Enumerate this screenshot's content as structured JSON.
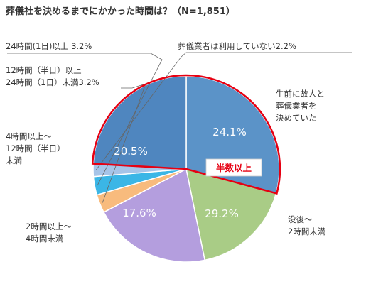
{
  "chart_data": {
    "type": "pie",
    "title": "葬儀社を決めるまでにかかった時間は？（N=1,851）",
    "slices": [
      {
        "label_lines": [
          "没後～",
          "2時間未満"
        ],
        "value": 29.2,
        "value_text": "29.2%",
        "color": "#5b93c8"
      },
      {
        "label_lines": [
          "2時間以上～",
          "4時間未満"
        ],
        "value": 17.6,
        "value_text": "17.6%",
        "color": "#a9cc86"
      },
      {
        "label_lines": [
          "4時間以上～",
          "12時間（半日）",
          "未満"
        ],
        "value": 20.5,
        "value_text": "20.5%",
        "color": "#b49ede"
      },
      {
        "label_lines": [
          "12時間（半日）以上",
          "24時間（1日）未満3.2%"
        ],
        "value": 3.2,
        "value_text": "",
        "color": "#f8bb7d"
      },
      {
        "label_lines": [
          "24時間(1日)以上 3.2%"
        ],
        "value": 3.2,
        "value_text": "",
        "color": "#3bb6e6"
      },
      {
        "label_lines": [
          "葬儀業者は利用していない2.2%"
        ],
        "value": 2.2,
        "value_text": "",
        "color": "#a6c4e8"
      },
      {
        "label_lines": [
          "生前に故人と",
          "葬儀業者を",
          "決めていた"
        ],
        "value": 24.1,
        "value_text": "24.1%",
        "color": "#4f86bf"
      }
    ],
    "highlight": {
      "label": "半数以上",
      "border_color": "#e60012"
    }
  }
}
